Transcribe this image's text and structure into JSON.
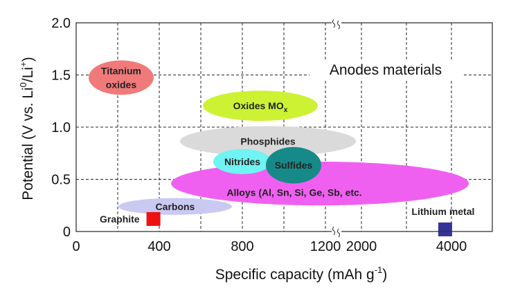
{
  "chart_data": {
    "type": "scatter",
    "annotation": "Anodes materials",
    "xlabel": {
      "main": "Specific capacity (mAh g",
      "sup": "-1",
      "end": ")"
    },
    "ylabel": {
      "main": "Potential (V vs. Li",
      "sup1": "0",
      "mid": "/Li",
      "sup2": "+",
      "end": ")"
    },
    "x_axis": {
      "broken": true,
      "segments": [
        [
          0,
          1250
        ],
        [
          1900,
          4600
        ]
      ],
      "ticks": [
        "0",
        "400",
        "800",
        "1200",
        "2000",
        "4000"
      ],
      "tick_values": [
        0,
        400,
        800,
        1200,
        2000,
        4000
      ],
      "grid_values": [
        200,
        400,
        600,
        800,
        1000,
        1200,
        2000,
        3000,
        4000
      ]
    },
    "y_axis": {
      "range": [
        0,
        2.0
      ],
      "ticks": [
        "0",
        "0.5",
        "1.0",
        "1.5",
        "2.0"
      ],
      "tick_values": [
        0,
        0.5,
        1.0,
        1.5,
        2.0
      ],
      "grid_values": [
        0.5,
        1.0,
        1.5
      ]
    },
    "grid": true,
    "regions": [
      {
        "name": "Titanium oxides",
        "lines": [
          "Titanium",
          "oxides"
        ],
        "x": [
          60,
          373
        ],
        "y": [
          1.31,
          1.64
        ],
        "color": "#f07a7a"
      },
      {
        "name": "Oxides MOx",
        "lines": [
          "Oxides MO"
        ],
        "sub": "x",
        "x": [
          610,
          1163
        ],
        "y": [
          1.06,
          1.35
        ],
        "color": "#ccf233"
      },
      {
        "name": "Phosphides",
        "lines": [
          "Phosphides"
        ],
        "x": [
          500,
          1347
        ],
        "y": [
          0.72,
          1.01
        ],
        "color": "#dadada"
      },
      {
        "name": "Alloys",
        "lines": [
          "Alloys (Al, Sn, Si, Ge, Sb, etc."
        ],
        "x": [
          457,
          4385
        ],
        "y": [
          0.25,
          0.67
        ],
        "color": "#f060f0"
      },
      {
        "name": "Nitrides",
        "lines": [
          "Nitrides"
        ],
        "x": [
          660,
          940
        ],
        "y": [
          0.55,
          0.79
        ],
        "color": "#6ff3f3"
      },
      {
        "name": "Sulfides",
        "lines": [
          "Sulfides"
        ],
        "x": [
          913,
          1180
        ],
        "y": [
          0.46,
          0.81
        ],
        "color": "#168a88"
      },
      {
        "name": "Carbons",
        "lines": [
          "Carbons"
        ],
        "x": [
          203,
          750
        ],
        "y": [
          0.16,
          0.32
        ],
        "color": "#c9c9f2"
      }
    ],
    "points": [
      {
        "name": "Graphite",
        "x": 372,
        "y": 0.12,
        "color": "#ee1111",
        "label_side": "left"
      },
      {
        "name": "Lithium metal",
        "x": 3860,
        "y": 0.02,
        "color": "#333399",
        "label_side": "above"
      }
    ]
  }
}
